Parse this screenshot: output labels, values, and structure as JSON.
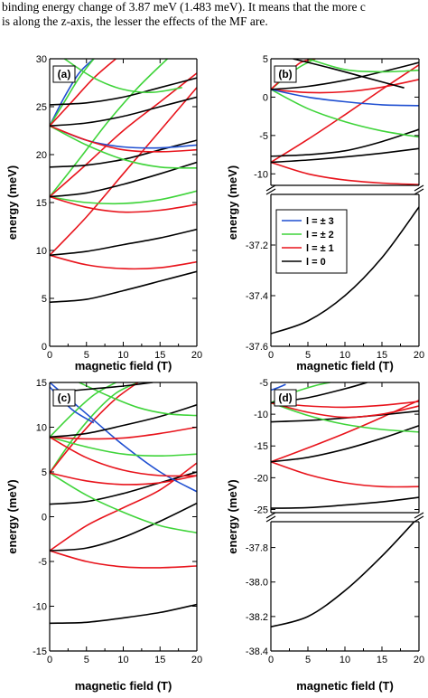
{
  "caption": {
    "line1": "binding energy change of 3.87 meV (1.483 meV). It means that the more c",
    "line2": "is along the z-axis, the lesser the effects of the MF are."
  },
  "colors": {
    "l3": "#1f4fd1",
    "l2": "#3fd43a",
    "l1": "#e8141c",
    "l0": "#000000"
  },
  "legend": {
    "items": [
      {
        "label": "l = ± 3",
        "color": "#1f4fd1"
      },
      {
        "label": "l = ± 2",
        "color": "#3fd43a"
      },
      {
        "label": "l = ± 1",
        "color": "#e8141c"
      },
      {
        "label": "l = 0",
        "color": "#000000"
      }
    ]
  },
  "chart_data": [
    {
      "panel": "(a)",
      "type": "line",
      "xlabel": "magnetic field (T)",
      "ylabel": "energy (meV)",
      "xlim": [
        0,
        20
      ],
      "ylim": [
        0,
        30
      ],
      "xticks": [
        "0",
        "5",
        "10",
        "15",
        "20"
      ],
      "yticks": [
        "0",
        "5",
        "10",
        "15",
        "20",
        "25",
        "30"
      ],
      "series": [
        {
          "l": 0,
          "x": [
            0,
            5,
            10,
            15,
            20
          ],
          "y": [
            4.6,
            4.9,
            5.8,
            6.8,
            7.8
          ]
        },
        {
          "l": 1,
          "x": [
            0,
            5,
            10,
            15,
            20
          ],
          "y": [
            9.5,
            8.5,
            8.1,
            8.2,
            8.8
          ]
        },
        {
          "l": 1,
          "x": [
            0,
            5,
            10,
            15,
            20
          ],
          "y": [
            9.5,
            13.5,
            18.0,
            22.5,
            27.0
          ]
        },
        {
          "l": 0,
          "x": [
            0,
            5,
            10,
            15,
            20
          ],
          "y": [
            9.5,
            9.9,
            10.6,
            11.3,
            12.2
          ]
        },
        {
          "l": 2,
          "x": [
            0,
            5,
            10,
            15,
            20
          ],
          "y": [
            15.6,
            15.0,
            14.9,
            15.3,
            16.2
          ]
        },
        {
          "l": 2,
          "x": [
            0,
            4,
            8,
            12,
            16
          ],
          "y": [
            15.6,
            19.5,
            23.5,
            27.0,
            30.0
          ]
        },
        {
          "l": 1,
          "x": [
            0,
            5,
            10,
            15,
            20
          ],
          "y": [
            15.6,
            14.5,
            14.0,
            14.2,
            14.8
          ]
        },
        {
          "l": 1,
          "x": [
            0,
            5,
            10,
            15,
            20
          ],
          "y": [
            15.6,
            19.0,
            22.5,
            25.5,
            28.5
          ]
        },
        {
          "l": 0,
          "x": [
            0,
            5,
            10,
            15,
            20
          ],
          "y": [
            15.6,
            16.0,
            16.9,
            18.0,
            19.2
          ]
        },
        {
          "l": 0,
          "x": [
            0,
            5,
            10,
            15,
            20
          ],
          "y": [
            18.7,
            18.9,
            19.5,
            20.5,
            21.5
          ]
        },
        {
          "l": 3,
          "x": [
            0,
            5,
            10,
            15,
            20
          ],
          "y": [
            23.0,
            21.5,
            20.8,
            20.7,
            21.0
          ]
        },
        {
          "l": 3,
          "x": [
            0,
            2,
            4,
            6
          ],
          "y": [
            23.0,
            26.0,
            28.5,
            30.0
          ]
        },
        {
          "l": 2,
          "x": [
            0,
            5,
            10,
            15,
            20
          ],
          "y": [
            23.0,
            21.0,
            19.5,
            18.7,
            18.6
          ]
        },
        {
          "l": 2,
          "x": [
            0,
            2,
            4,
            6
          ],
          "y": [
            23.0,
            25.5,
            28.0,
            30.0
          ]
        },
        {
          "l": 1,
          "x": [
            0,
            5,
            10,
            15,
            20
          ],
          "y": [
            23.0,
            21.5,
            20.5,
            20.3,
            20.5
          ]
        },
        {
          "l": 1,
          "x": [
            0,
            3,
            6,
            9
          ],
          "y": [
            23.0,
            25.5,
            28.0,
            30.0
          ]
        },
        {
          "l": 0,
          "x": [
            0,
            5,
            10,
            15,
            20
          ],
          "y": [
            23.0,
            23.3,
            24.0,
            25.0,
            26.0
          ]
        },
        {
          "l": 0,
          "x": [
            0,
            5,
            10,
            15,
            20
          ],
          "y": [
            25.2,
            25.4,
            26.0,
            27.0,
            28.0
          ]
        },
        {
          "l": 2,
          "x": [
            2,
            6,
            10,
            14,
            18
          ],
          "y": [
            30.0,
            28.0,
            26.8,
            26.5,
            27.0
          ]
        }
      ]
    },
    {
      "panel": "(b)",
      "type": "line",
      "xlabel": "magnetic field (T)",
      "ylabel": "energy (meV)",
      "xlim": [
        0,
        20
      ],
      "ylim_upper": [
        -11.5,
        5
      ],
      "ylim_lower": [
        -37.6,
        -37.0
      ],
      "broken_axis": true,
      "xticks": [
        "0",
        "5",
        "10",
        "15",
        "20"
      ],
      "yticks_upper": [
        "5",
        "0",
        "-5",
        "-10"
      ],
      "yticks_lower": [
        "-37.2",
        "-37.4",
        "-37.6"
      ],
      "series": [
        {
          "l": 0,
          "x": [
            0,
            5,
            10,
            15,
            20
          ],
          "y": [
            -37.55,
            -37.5,
            -37.4,
            -37.25,
            -37.05
          ]
        },
        {
          "l": 1,
          "x": [
            0,
            5,
            10,
            15,
            20
          ],
          "y": [
            -8.5,
            -10.0,
            -10.8,
            -11.2,
            -11.4
          ]
        },
        {
          "l": 1,
          "x": [
            0,
            5,
            10,
            15,
            20
          ],
          "y": [
            -8.5,
            -5.5,
            -2.3,
            1.0,
            4.2
          ]
        },
        {
          "l": 0,
          "x": [
            0,
            5,
            10,
            15,
            20
          ],
          "y": [
            -8.5,
            -8.2,
            -7.8,
            -7.3,
            -6.7
          ]
        },
        {
          "l": 0,
          "x": [
            0,
            5,
            10,
            15,
            20
          ],
          "y": [
            -7.7,
            -7.5,
            -7.0,
            -5.8,
            -4.2
          ]
        },
        {
          "l": 2,
          "x": [
            0,
            5,
            10,
            15,
            20
          ],
          "y": [
            1.0,
            -1.5,
            -3.2,
            -4.4,
            -5.2
          ]
        },
        {
          "l": 2,
          "x": [
            0,
            2,
            4,
            6
          ],
          "y": [
            1.0,
            2.6,
            4.0,
            5.0
          ]
        },
        {
          "l": 1,
          "x": [
            0,
            5,
            10,
            15,
            20
          ],
          "y": [
            1.0,
            0.6,
            0.7,
            1.3,
            2.3
          ]
        },
        {
          "l": 1,
          "x": [
            0,
            2,
            4,
            6
          ],
          "y": [
            1.0,
            2.8,
            4.5,
            5.0
          ]
        },
        {
          "l": 3,
          "x": [
            0,
            5,
            10,
            15,
            20
          ],
          "y": [
            1.0,
            0.0,
            -0.6,
            -1.0,
            -1.1
          ]
        },
        {
          "l": 0,
          "x": [
            0,
            5,
            10,
            15,
            20
          ],
          "y": [
            1.0,
            1.4,
            2.2,
            3.3,
            4.5
          ]
        },
        {
          "l": 2,
          "x": [
            5,
            10,
            15,
            20
          ],
          "y": [
            5.0,
            3.6,
            3.3,
            3.5
          ]
        },
        {
          "l": 0,
          "x": [
            3,
            8,
            13,
            18
          ],
          "y": [
            5.0,
            3.8,
            2.5,
            1.2
          ]
        }
      ]
    },
    {
      "panel": "(c)",
      "type": "line",
      "xlabel": "magnetic field (T)",
      "ylabel": "energy (meV)",
      "xlim": [
        0,
        20
      ],
      "ylim": [
        -15,
        15
      ],
      "xticks": [
        "0",
        "5",
        "10",
        "15",
        "20"
      ],
      "yticks": [
        "-15",
        "-10",
        "-5",
        "0",
        "5",
        "10",
        "15"
      ],
      "series": [
        {
          "l": 0,
          "x": [
            0,
            5,
            10,
            15,
            20
          ],
          "y": [
            -11.9,
            -11.8,
            -11.3,
            -10.7,
            -9.8
          ]
        },
        {
          "l": 1,
          "x": [
            0,
            5,
            10,
            15,
            20
          ],
          "y": [
            -3.8,
            -5.0,
            -5.6,
            -5.7,
            -5.5
          ]
        },
        {
          "l": 1,
          "x": [
            0,
            5,
            10,
            15,
            20
          ],
          "y": [
            -3.8,
            -1.0,
            1.0,
            3.0,
            6.0
          ]
        },
        {
          "l": 0,
          "x": [
            0,
            5,
            10,
            15,
            20
          ],
          "y": [
            -3.8,
            -3.5,
            -2.3,
            -0.5,
            1.5
          ]
        },
        {
          "l": 0,
          "x": [
            0,
            5,
            10,
            15,
            20
          ],
          "y": [
            1.4,
            1.7,
            2.6,
            3.8,
            5.0
          ]
        },
        {
          "l": 2,
          "x": [
            0,
            5,
            10,
            15,
            20
          ],
          "y": [
            4.9,
            2.4,
            0.5,
            -1.0,
            -1.8
          ]
        },
        {
          "l": 2,
          "x": [
            0,
            3,
            6,
            9,
            12
          ],
          "y": [
            4.9,
            8.5,
            11.5,
            13.8,
            15.0
          ]
        },
        {
          "l": 1,
          "x": [
            0,
            5,
            10,
            15,
            20
          ],
          "y": [
            4.9,
            4.0,
            3.6,
            3.8,
            4.6
          ]
        },
        {
          "l": 1,
          "x": [
            0,
            3,
            6,
            9,
            12
          ],
          "y": [
            4.9,
            8.0,
            10.8,
            13.2,
            15.0
          ]
        },
        {
          "l": 3,
          "x": [
            0,
            5,
            10,
            15,
            20
          ],
          "y": [
            15.0,
            11.5,
            8.0,
            5.0,
            2.8
          ]
        },
        {
          "l": 2,
          "x": [
            0,
            5,
            10,
            15,
            20
          ],
          "y": [
            8.9,
            7.8,
            7.0,
            6.8,
            7.0
          ]
        },
        {
          "l": 2,
          "x": [
            0,
            3,
            6,
            9
          ],
          "y": [
            8.9,
            11.4,
            13.6,
            15.0
          ]
        },
        {
          "l": 1,
          "x": [
            0,
            5,
            10,
            15,
            20
          ],
          "y": [
            8.9,
            8.7,
            8.8,
            9.3,
            10.0
          ]
        },
        {
          "l": 1,
          "x": [
            0,
            5,
            10,
            15,
            20
          ],
          "y": [
            8.9,
            6.6,
            5.2,
            4.6,
            4.6
          ]
        },
        {
          "l": 0,
          "x": [
            0,
            5,
            10,
            15,
            20
          ],
          "y": [
            8.9,
            9.3,
            10.2,
            11.2,
            12.5
          ]
        },
        {
          "l": 3,
          "x": [
            0,
            3,
            6
          ],
          "y": [
            14.5,
            12.0,
            10.5
          ]
        },
        {
          "l": 2,
          "x": [
            4,
            8,
            12,
            16,
            20
          ],
          "y": [
            15.0,
            13.5,
            12.2,
            11.5,
            11.3
          ]
        },
        {
          "l": 0,
          "x": [
            2,
            6,
            10,
            14
          ],
          "y": [
            14.0,
            14.3,
            14.6,
            15.0
          ]
        }
      ]
    },
    {
      "panel": "(d)",
      "type": "line",
      "xlabel": "magnetic field (T)",
      "ylabel": "energy (meV)",
      "xlim": [
        0,
        20
      ],
      "ylim_upper": [
        -25.5,
        -5
      ],
      "ylim_lower": [
        -38.4,
        -37.65
      ],
      "broken_axis": true,
      "xticks": [
        "0",
        "5",
        "10",
        "15",
        "20"
      ],
      "yticks_upper": [
        "-5",
        "-10",
        "-15",
        "-20",
        "-25"
      ],
      "yticks_lower": [
        "-37.8",
        "-38.0",
        "-38.2",
        "-38.4"
      ],
      "series": [
        {
          "l": 0,
          "x": [
            0,
            5,
            10,
            15,
            20
          ],
          "y": [
            -38.26,
            -38.2,
            -38.05,
            -37.85,
            -37.62
          ]
        },
        {
          "l": 0,
          "x": [
            0,
            5,
            10,
            15,
            20
          ],
          "y": [
            -24.8,
            -24.7,
            -24.3,
            -23.8,
            -23.1
          ]
        },
        {
          "l": 1,
          "x": [
            0,
            5,
            10,
            15,
            20
          ],
          "y": [
            -17.5,
            -19.5,
            -20.8,
            -21.4,
            -21.4
          ]
        },
        {
          "l": 1,
          "x": [
            0,
            5,
            10,
            15,
            20
          ],
          "y": [
            -17.5,
            -15.3,
            -13.0,
            -10.5,
            -7.8
          ]
        },
        {
          "l": 0,
          "x": [
            0,
            5,
            10,
            15,
            20
          ],
          "y": [
            -17.5,
            -16.8,
            -15.5,
            -13.8,
            -11.8
          ]
        },
        {
          "l": 0,
          "x": [
            0,
            5,
            10,
            15,
            20
          ],
          "y": [
            -11.2,
            -11.0,
            -10.6,
            -10.1,
            -9.5
          ]
        },
        {
          "l": 2,
          "x": [
            0,
            5,
            10,
            15,
            20
          ],
          "y": [
            -8.2,
            -10.2,
            -11.6,
            -12.4,
            -12.8
          ]
        },
        {
          "l": 2,
          "x": [
            0,
            3,
            6,
            8
          ],
          "y": [
            -8.2,
            -6.6,
            -5.5,
            -5.0
          ]
        },
        {
          "l": 1,
          "x": [
            0,
            5,
            10,
            15,
            20
          ],
          "y": [
            -8.2,
            -8.7,
            -8.9,
            -8.6,
            -8.0
          ]
        },
        {
          "l": 1,
          "x": [
            0,
            5,
            10,
            15,
            20
          ],
          "y": [
            -8.2,
            -9.7,
            -10.5,
            -10.0,
            -8.7
          ]
        },
        {
          "l": 0,
          "x": [
            0,
            5,
            10,
            13
          ],
          "y": [
            -8.2,
            -7.4,
            -6.0,
            -5.0
          ]
        },
        {
          "l": 3,
          "x": [
            0,
            1,
            2
          ],
          "y": [
            -6.2,
            -5.8,
            -5.3
          ]
        }
      ]
    }
  ]
}
